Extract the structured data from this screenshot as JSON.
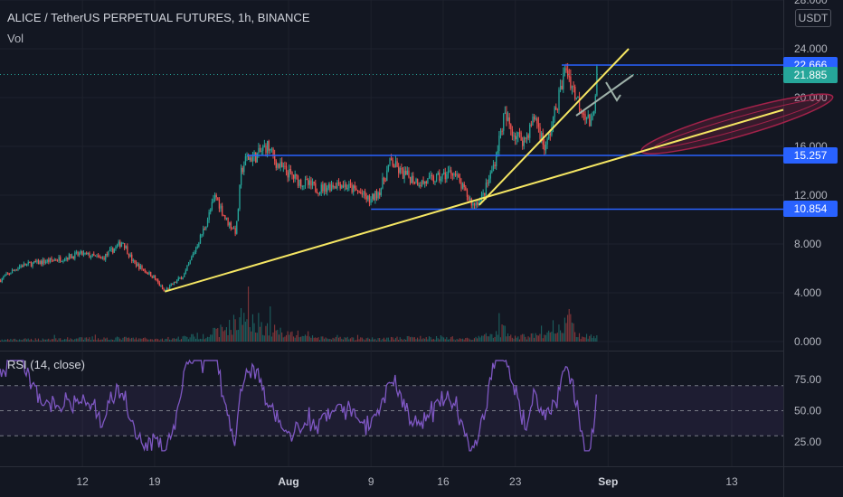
{
  "header": {
    "title": "ALICE / TetherUS PERPETUAL FUTURES, 1h, BINANCE",
    "vol_label": "Vol",
    "unit": "USDT"
  },
  "rsi_label": "RSI (14, close)",
  "price_tags": [
    {
      "label": "22.666",
      "value": 22.666,
      "color": "#2962ff"
    },
    {
      "label": "21.885",
      "value": 21.885,
      "color": "#26a69a"
    },
    {
      "label": "15.257",
      "value": 15.257,
      "color": "#2962ff"
    },
    {
      "label": "10.854",
      "value": 10.854,
      "color": "#2962ff"
    }
  ],
  "chart_data": [
    {
      "type": "candlestick",
      "title": "ALICE / TetherUS PERPETUAL FUTURES, 1h, BINANCE",
      "y_ticks": [
        "28.000",
        "24.000",
        "20.000",
        "16.000",
        "12.000",
        "8.000",
        "4.000",
        "0.000"
      ],
      "ylim": [
        0,
        28
      ],
      "x_ticks": [
        {
          "label": "12",
          "day": 12,
          "bold": false
        },
        {
          "label": "19",
          "day": 19,
          "bold": false
        },
        {
          "label": "Aug",
          "day": 32,
          "bold": true
        },
        {
          "label": "9",
          "day": 40,
          "bold": false
        },
        {
          "label": "16",
          "day": 47,
          "bold": false
        },
        {
          "label": "23",
          "day": 54,
          "bold": false
        },
        {
          "label": "Sep",
          "day": 63,
          "bold": true
        },
        {
          "label": "13",
          "day": 75,
          "bold": false
        }
      ],
      "xlim_days": [
        4,
        80
      ],
      "price_path": [
        [
          4,
          5.0
        ],
        [
          6,
          6.2
        ],
        [
          8,
          6.5
        ],
        [
          10,
          6.8
        ],
        [
          12,
          7.2
        ],
        [
          14,
          6.8
        ],
        [
          16,
          8.2
        ],
        [
          17,
          6.5
        ],
        [
          19,
          5.3
        ],
        [
          20,
          4.1
        ],
        [
          22,
          5.5
        ],
        [
          23,
          7.5
        ],
        [
          24,
          9.5
        ],
        [
          25,
          12.0
        ],
        [
          26,
          10.0
        ],
        [
          27,
          9.0
        ],
        [
          27.5,
          14.0
        ],
        [
          28,
          15.0
        ],
        [
          29,
          15.2
        ],
        [
          30,
          16.1
        ],
        [
          31,
          14.5
        ],
        [
          33,
          13.2
        ],
        [
          35,
          12.5
        ],
        [
          37,
          13.0
        ],
        [
          39,
          12.2
        ],
        [
          40,
          11.5
        ],
        [
          41,
          12.5
        ],
        [
          42,
          14.8
        ],
        [
          43,
          13.8
        ],
        [
          45,
          13.0
        ],
        [
          47,
          13.5
        ],
        [
          48,
          14.0
        ],
        [
          49,
          12.5
        ],
        [
          50,
          11.2
        ],
        [
          51,
          12.0
        ],
        [
          52,
          14.5
        ],
        [
          53,
          18.5
        ],
        [
          54,
          17.0
        ],
        [
          55,
          16.5
        ],
        [
          56,
          18.5
        ],
        [
          57,
          15.7
        ],
        [
          58,
          19.0
        ],
        [
          59,
          22.5
        ],
        [
          60,
          20.0
        ],
        [
          61,
          18.5
        ],
        [
          61.5,
          17.5
        ],
        [
          62,
          22.0
        ]
      ],
      "volume": [
        [
          4,
          0.3
        ],
        [
          10,
          0.5
        ],
        [
          16,
          0.6
        ],
        [
          20,
          0.4
        ],
        [
          24,
          1.2
        ],
        [
          26,
          2.5
        ],
        [
          28,
          4.8
        ],
        [
          30,
          2.2
        ],
        [
          35,
          0.6
        ],
        [
          40,
          0.5
        ],
        [
          45,
          0.7
        ],
        [
          50,
          0.5
        ],
        [
          53,
          2.2
        ],
        [
          54,
          0.8
        ],
        [
          58,
          1.5
        ],
        [
          59,
          4.6
        ],
        [
          60,
          1.0
        ],
        [
          62,
          0.8
        ]
      ],
      "horizontal_levels": [
        {
          "value": 22.666,
          "from_day": 58.5,
          "to_day": 80
        },
        {
          "value": 15.257,
          "from_day": 28,
          "to_day": 80
        },
        {
          "value": 10.854,
          "from_day": 40,
          "to_day": 80
        }
      ],
      "trendlines": [
        {
          "from": [
            20,
            4.1
          ],
          "to": [
            80,
            19.0
          ]
        },
        {
          "from": [
            50.5,
            11.2
          ],
          "to": [
            65,
            24.0
          ]
        }
      ],
      "annotations": [
        "projection-cone",
        "arrow"
      ]
    },
    {
      "type": "line",
      "title": "RSI (14, close)",
      "y_ticks": [
        "75.00",
        "50.00",
        "25.00"
      ],
      "ylim": [
        10,
        95
      ],
      "bands": [
        30,
        50,
        70
      ],
      "line_color": "#7e57c2"
    }
  ],
  "colors": {
    "background": "#131722",
    "grid": "#1e222d",
    "up": "#26a69a",
    "down": "#ef5350",
    "level": "#2962ff",
    "trend": "#f5e663",
    "cone": "#a2224a",
    "rsi": "#7e57c2"
  }
}
